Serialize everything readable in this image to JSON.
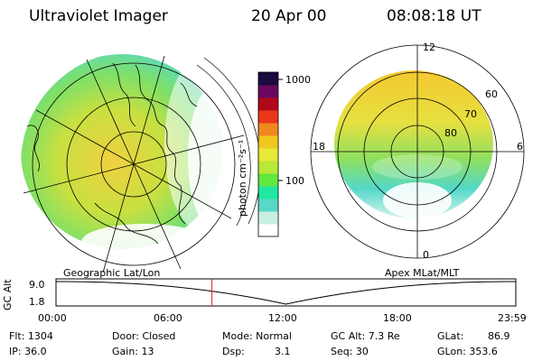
{
  "header": {
    "title": "Ultraviolet Imager",
    "date": "20 Apr 00",
    "time": "08:08:18 UT"
  },
  "colorbar": {
    "unit_label": "photon cm⁻²s⁻¹",
    "tick_1000": "1000",
    "tick_100": "100",
    "colors": [
      "#ffffff",
      "#c8f0e0",
      "#58d8c8",
      "#20e8a0",
      "#60e840",
      "#b8e838",
      "#e8e838",
      "#f0c820",
      "#f08820",
      "#e83818",
      "#b00818",
      "#6a0860",
      "#1a0a40"
    ]
  },
  "left_panel": {
    "caption": "Geographic Lat/Lon"
  },
  "right_panel": {
    "caption": "Apex MLat/MLT",
    "mlt_12": "12",
    "mlt_18": "18",
    "mlt_6": "6",
    "mlt_0": "0",
    "lat_60": "60",
    "lat_70": "70",
    "lat_80": "80"
  },
  "altitude_plot": {
    "ylabel": "GC Alt",
    "ytick_high": "9.0",
    "ytick_low": "1.8",
    "xticks": [
      "00:00",
      "06:00",
      "12:00",
      "18:00",
      "23:59"
    ],
    "marker_time": "08:08:18"
  },
  "footer": {
    "flt": "Flt: 1304",
    "ip": "IP: 36.0",
    "door": "Door: Closed",
    "gain": "Gain: 13",
    "mode": "Mode: Normal",
    "dsp_label": "Dsp:",
    "dsp_value": "3.1",
    "gcalt": "GC Alt: 7.3 Re",
    "seq": "Seq: 30",
    "glat": "GLat:",
    "glat_value": "86.9",
    "glon": "GLon: 353.6"
  }
}
